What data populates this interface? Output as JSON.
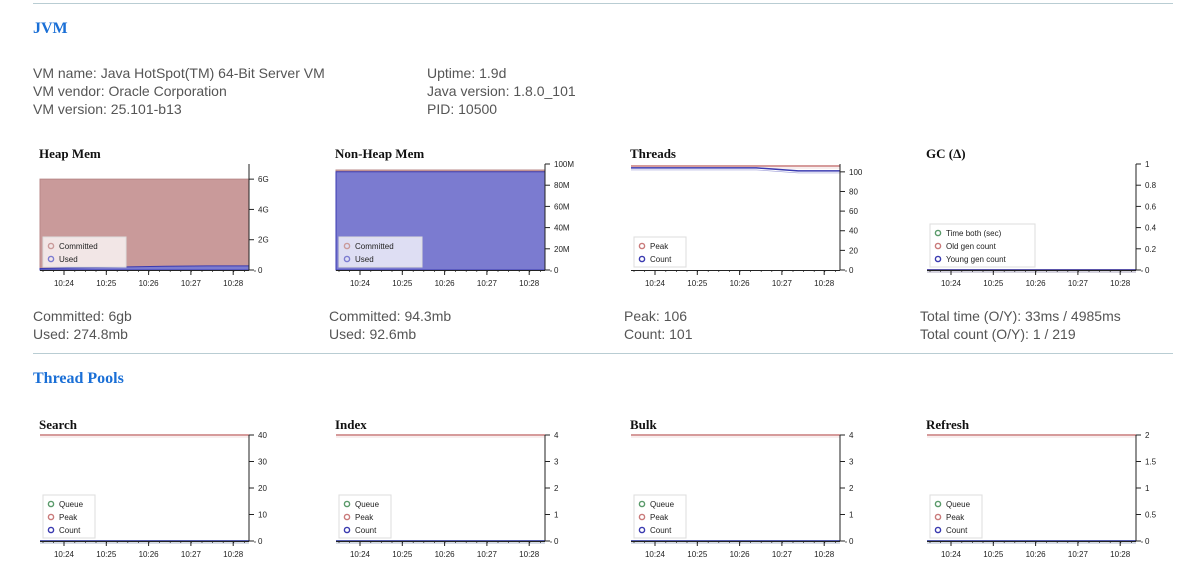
{
  "jvm": {
    "title": "JVM",
    "vm_name": "VM name: Java HotSpot(TM) 64-Bit Server VM",
    "vm_vendor": "VM vendor: Oracle Corporation",
    "vm_version": "VM version: 25.101-b13",
    "uptime": "Uptime: 1.9d",
    "java_version": "Java version: 1.8.0_101",
    "pid": "PID: 10500"
  },
  "thread_pools": {
    "title": "Thread Pools"
  },
  "colors": {
    "committed": "#c99a9a",
    "used": "#7b7bd0",
    "peak": "#c97a7a",
    "count": "#4b4bb5",
    "queue": "#5a9a6a",
    "blue_line": "#3a3ab0"
  },
  "x_ticks": [
    "10:24",
    "10:25",
    "10:26",
    "10:27",
    "10:28"
  ],
  "stats": {
    "heap": [
      "Committed: 6gb",
      "Used: 274.8mb"
    ],
    "nonheap": [
      "Committed: 94.3mb",
      "Used: 92.6mb"
    ],
    "threads": [
      "Peak: 106",
      "Count: 101"
    ],
    "gc": [
      "Total time (O/Y): 33ms / 4985ms",
      "Total count (O/Y): 1 / 219"
    ]
  },
  "chart_data": [
    {
      "id": "heap",
      "type": "area",
      "title": "Heap Mem",
      "y_ticks": [
        "0",
        "2G",
        "4G",
        "6G"
      ],
      "ylim": [
        0,
        7
      ],
      "legend": [
        "Committed",
        "Used"
      ],
      "legend_colors": [
        "committed",
        "used"
      ],
      "series": [
        {
          "name": "Committed",
          "values": [
            6,
            6,
            6,
            6,
            6,
            6
          ]
        },
        {
          "name": "Used",
          "values": [
            0.1,
            0.15,
            0.2,
            0.25,
            0.27,
            0.27
          ]
        }
      ]
    },
    {
      "id": "nonheap",
      "type": "area",
      "title": "Non-Heap Mem",
      "y_ticks": [
        "0",
        "20M",
        "40M",
        "60M",
        "80M",
        "100M"
      ],
      "ylim": [
        0,
        100
      ],
      "legend": [
        "Committed",
        "Used"
      ],
      "legend_colors": [
        "committed",
        "used"
      ],
      "series": [
        {
          "name": "Committed",
          "values": [
            94.3,
            94.3,
            94.3,
            94.3,
            94.3,
            94.3
          ]
        },
        {
          "name": "Used",
          "values": [
            92.6,
            92.6,
            92.6,
            92.6,
            92.6,
            92.6
          ]
        }
      ]
    },
    {
      "id": "threads",
      "type": "line",
      "title": "Threads",
      "y_ticks": [
        "0",
        "20",
        "40",
        "60",
        "80",
        "100"
      ],
      "ylim": [
        0,
        108
      ],
      "legend": [
        "Peak",
        "Count"
      ],
      "legend_colors": [
        "peak",
        "count"
      ],
      "series": [
        {
          "name": "Peak",
          "values": [
            106,
            106,
            106,
            106,
            106,
            106
          ]
        },
        {
          "name": "Count",
          "values": [
            104,
            104,
            104,
            104,
            101,
            101
          ]
        }
      ]
    },
    {
      "id": "gc",
      "type": "line",
      "title": "GC (Δ)",
      "y_ticks": [
        "0",
        "0.2",
        "0.4",
        "0.6",
        "0.8",
        "1"
      ],
      "ylim": [
        0,
        1
      ],
      "legend": [
        "Time both (sec)",
        "Old gen count",
        "Young gen count"
      ],
      "legend_colors": [
        "queue",
        "peak",
        "count"
      ],
      "series": [
        {
          "name": "Time both (sec)",
          "values": [
            0,
            0,
            0,
            0,
            0,
            0
          ]
        },
        {
          "name": "Old gen count",
          "values": [
            0,
            0,
            0,
            0,
            0,
            0
          ]
        },
        {
          "name": "Young gen count",
          "values": [
            0,
            0,
            0,
            0,
            0,
            0
          ]
        }
      ]
    },
    {
      "id": "search",
      "type": "line",
      "title": "Search",
      "y_ticks": [
        "0",
        "10",
        "20",
        "30",
        "40"
      ],
      "ylim": [
        0,
        40
      ],
      "legend": [
        "Queue",
        "Peak",
        "Count"
      ],
      "legend_colors": [
        "queue",
        "peak",
        "count"
      ],
      "series": [
        {
          "name": "Queue",
          "values": [
            0,
            0,
            0,
            0,
            0,
            0
          ]
        },
        {
          "name": "Peak",
          "values": [
            40,
            40,
            40,
            40,
            40,
            40
          ]
        },
        {
          "name": "Count",
          "values": [
            0,
            0,
            0,
            0,
            0,
            0
          ]
        }
      ]
    },
    {
      "id": "index",
      "type": "line",
      "title": "Index",
      "y_ticks": [
        "0",
        "1",
        "2",
        "3",
        "4"
      ],
      "ylim": [
        0,
        4
      ],
      "legend": [
        "Queue",
        "Peak",
        "Count"
      ],
      "legend_colors": [
        "queue",
        "peak",
        "count"
      ],
      "series": [
        {
          "name": "Queue",
          "values": [
            0,
            0,
            0,
            0,
            0,
            0
          ]
        },
        {
          "name": "Peak",
          "values": [
            4,
            4,
            4,
            4,
            4,
            4
          ]
        },
        {
          "name": "Count",
          "values": [
            0,
            0,
            0,
            0,
            0,
            0
          ]
        }
      ]
    },
    {
      "id": "bulk",
      "type": "line",
      "title": "Bulk",
      "y_ticks": [
        "0",
        "1",
        "2",
        "3",
        "4"
      ],
      "ylim": [
        0,
        4
      ],
      "legend": [
        "Queue",
        "Peak",
        "Count"
      ],
      "legend_colors": [
        "queue",
        "peak",
        "count"
      ],
      "series": [
        {
          "name": "Queue",
          "values": [
            0,
            0,
            0,
            0,
            0,
            0
          ]
        },
        {
          "name": "Peak",
          "values": [
            4,
            4,
            4,
            4,
            4,
            4
          ]
        },
        {
          "name": "Count",
          "values": [
            0,
            0,
            0,
            0,
            0,
            0
          ]
        }
      ]
    },
    {
      "id": "refresh",
      "type": "line",
      "title": "Refresh",
      "y_ticks": [
        "0",
        "0.5",
        "1",
        "1.5",
        "2"
      ],
      "ylim": [
        0,
        2
      ],
      "legend": [
        "Queue",
        "Peak",
        "Count"
      ],
      "legend_colors": [
        "queue",
        "peak",
        "count"
      ],
      "series": [
        {
          "name": "Queue",
          "values": [
            0,
            0,
            0,
            0,
            0,
            0
          ]
        },
        {
          "name": "Peak",
          "values": [
            2,
            2,
            2,
            2,
            2,
            2
          ]
        },
        {
          "name": "Count",
          "values": [
            0,
            0,
            0,
            0,
            0,
            0
          ]
        }
      ]
    }
  ]
}
